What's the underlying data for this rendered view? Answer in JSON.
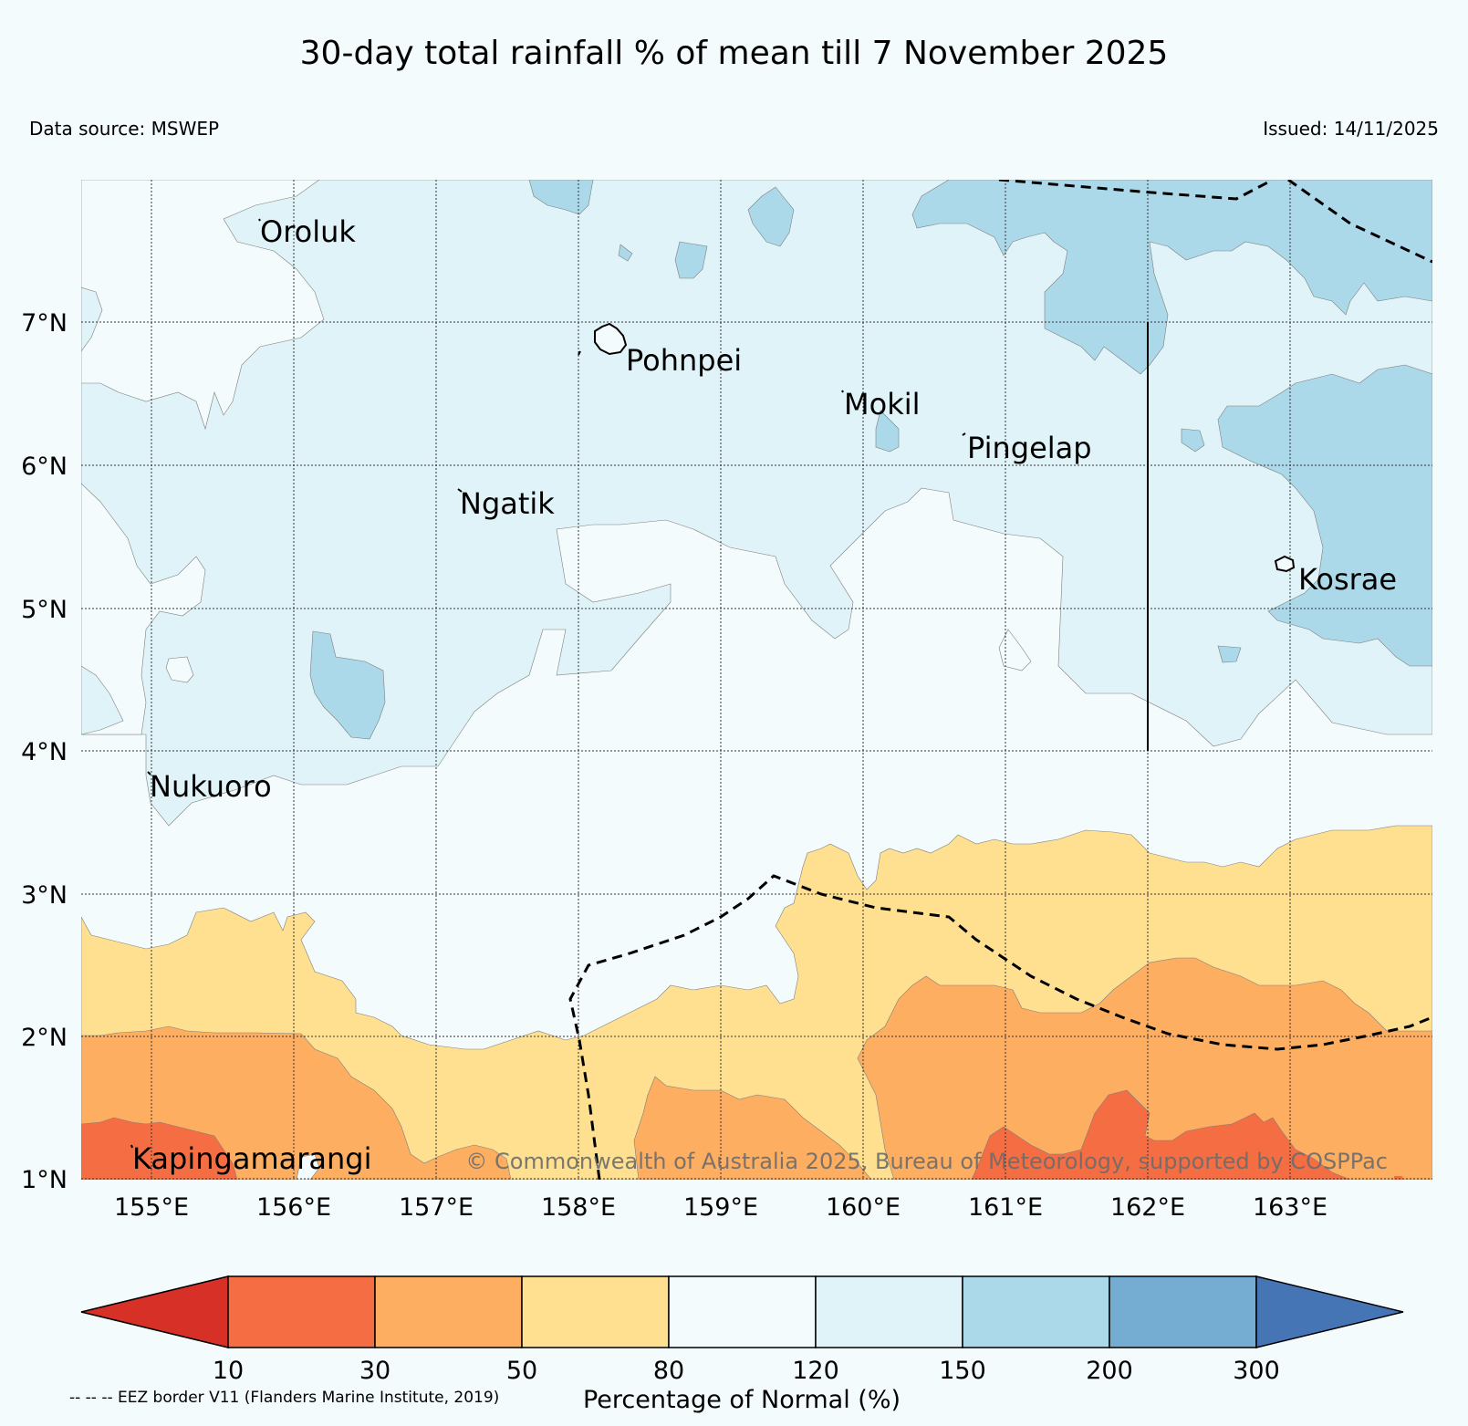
{
  "header": {
    "title": "30-day total rainfall % of mean till 7 November 2025",
    "data_source": "Data source: MSWEP",
    "issued": "Issued: 14/11/2025"
  },
  "map": {
    "lat_labels": [
      "7°N",
      "6°N",
      "5°N",
      "4°N",
      "3°N",
      "2°N",
      "1°N"
    ],
    "lon_labels": [
      "155°E",
      "156°E",
      "157°E",
      "158°E",
      "159°E",
      "160°E",
      "161°E",
      "162°E",
      "163°E"
    ],
    "places": [
      "Oroluk",
      "Pohnpei",
      "Mokil",
      "Pingelap",
      "Ngatik",
      "Kosrae",
      "Nukuoro",
      "Kapingamarangi"
    ],
    "copyright": "© Commonwealth of Australia 2025, Bureau of Meteorology, supported by COSPPac"
  },
  "colorbar": {
    "title": "Percentage of Normal (%)",
    "ticks": [
      "10",
      "30",
      "50",
      "80",
      "120",
      "150",
      "200",
      "300"
    ],
    "colors": {
      "below_10": "#d73027",
      "10_30": "#f46d43",
      "30_50": "#fdae61",
      "50_80": "#fee090",
      "80_120": "#f4fbfd",
      "120_150": "#e0f3f8",
      "150_200": "#abd9e9",
      "200_300": "#74add1",
      "above_300": "#4575b4"
    }
  },
  "legend": {
    "eez_note": "-- -- -- EEZ border V11 (Flanders Marine Institute, 2019)"
  }
}
